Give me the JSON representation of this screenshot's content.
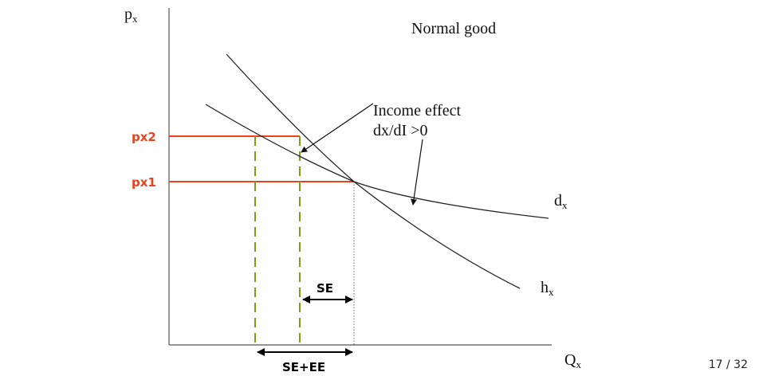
{
  "diagram": {
    "y_axis_label": "p",
    "y_axis_subscript": "x",
    "x_axis_label": "Q",
    "x_axis_subscript": "x",
    "title": "Normal good",
    "price_labels": {
      "px2": "px2",
      "px1": "px1"
    },
    "curve_labels": {
      "demand": "d",
      "demand_subscript": "x",
      "hicksian": "h",
      "hicksian_subscript": "x"
    },
    "annotation": {
      "line1": "Income effect",
      "line2": "dx/dI >0"
    },
    "brackets": {
      "se": "SE",
      "se_ee": "SE+EE"
    },
    "colors": {
      "price_lines": "#e8421f",
      "dashed_lines": "#7aa018",
      "curves": "#222222",
      "axes": "#555555"
    }
  },
  "footer": {
    "page": "17 / 32"
  }
}
